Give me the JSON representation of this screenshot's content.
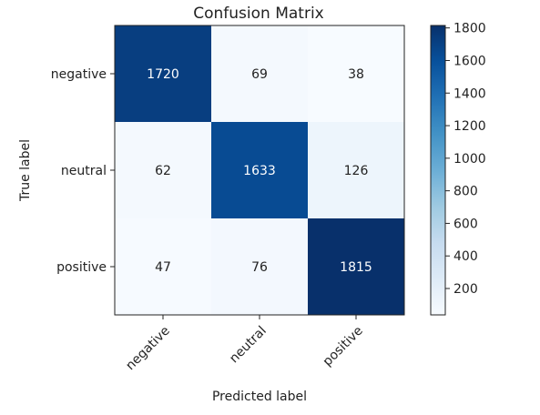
{
  "chart_data": {
    "type": "heatmap",
    "title": "Confusion Matrix",
    "xlabel": "Predicted label",
    "ylabel": "True label",
    "x_categories": [
      "negative",
      "neutral",
      "positive"
    ],
    "y_categories": [
      "negative",
      "neutral",
      "positive"
    ],
    "values": [
      [
        1720,
        69,
        38
      ],
      [
        62,
        1633,
        126
      ],
      [
        47,
        76,
        1815
      ]
    ],
    "colormap": "Blues",
    "color_range": [
      38,
      1815
    ],
    "colorbar_ticks": [
      200,
      400,
      600,
      800,
      1000,
      1200,
      1400,
      1600,
      1800
    ],
    "colorbar_tick_labels": [
      "200",
      "400",
      "600",
      "800",
      "1000",
      "1200",
      "1400",
      "1600",
      "1800"
    ],
    "colors": {
      "low": "#f7fbff",
      "high": "#08306b",
      "text_on_dark": "#ffffff",
      "text_on_light": "#222222"
    }
  }
}
